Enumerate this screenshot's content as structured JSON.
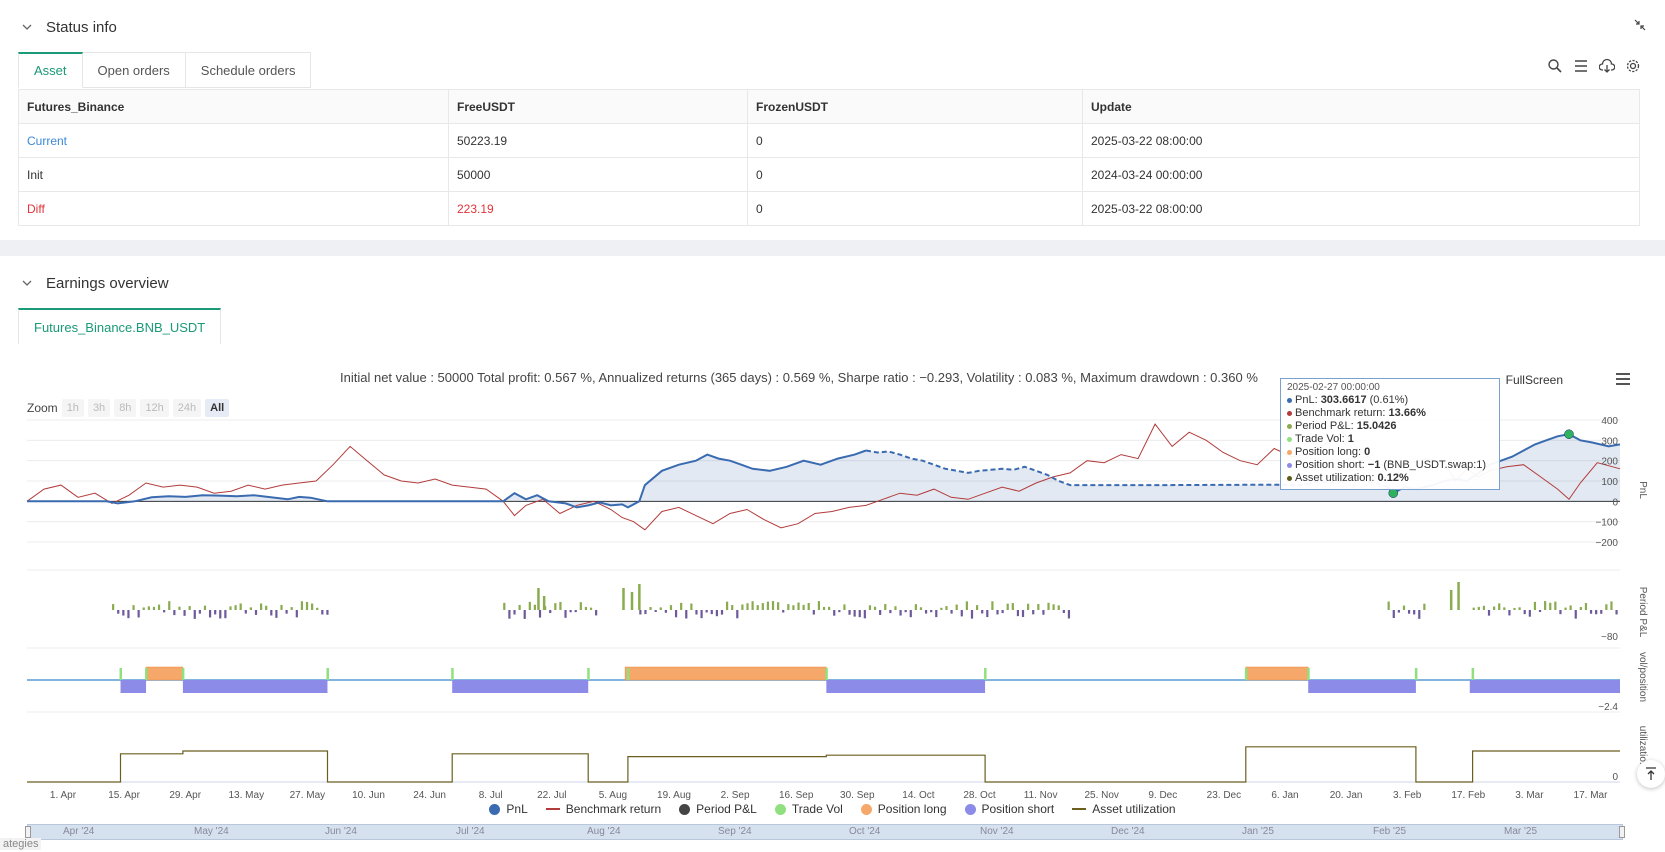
{
  "status_panel": {
    "title": "Status info",
    "tabs": [
      {
        "label": "Asset",
        "active": true
      },
      {
        "label": "Open orders",
        "active": false
      },
      {
        "label": "Schedule orders",
        "active": false
      }
    ],
    "table": {
      "headers": [
        "Futures_Binance",
        "FreeUSDT",
        "FrozenUSDT",
        "Update"
      ],
      "rows": [
        [
          "Current",
          "50223.19",
          "0",
          "2025-03-22 08:00:00"
        ],
        [
          "Init",
          "50000",
          "0",
          "2024-03-24 00:00:00"
        ],
        [
          "Diff",
          "223.19",
          "0",
          "2025-03-22 08:00:00"
        ]
      ]
    }
  },
  "earnings_panel": {
    "title": "Earnings overview",
    "tab": "Futures_Binance.BNB_USDT",
    "summary": "Initial net value : 50000 Total profit: 0.567 %, Annualized returns (365 days) : 0.569 %, Sharpe ratio : −0.293, Volatility : 0.083 %, Maximum drawdown : 0.360 %",
    "fullscreen_label": "FullScreen",
    "zoom": {
      "label": "Zoom",
      "buttons": [
        "1h",
        "3h",
        "8h",
        "12h",
        "24h",
        "All"
      ],
      "selected": "All"
    }
  },
  "tooltip": {
    "date": "2025-02-27 00:00:00",
    "rows": [
      {
        "label": "PnL: ",
        "value": "303.6617",
        "extra": " (0.61%)",
        "color": "#3a6bb0"
      },
      {
        "label": "Benchmark return: ",
        "value": "13.66%",
        "extra": "",
        "color": "#b33b3b"
      },
      {
        "label": "Period P&L: ",
        "value": "15.0426",
        "extra": "",
        "color": "#8aab4f"
      },
      {
        "label": "Trade Vol: ",
        "value": "1",
        "extra": "",
        "color": "#90e080"
      },
      {
        "label": "Position long: ",
        "value": "0",
        "extra": "",
        "color": "#f5a86a"
      },
      {
        "label": "Position short: ",
        "value": "−1",
        "extra": " (BNB_USDT.swap:1)",
        "color": "#8c8ce8"
      },
      {
        "label": "Asset utilization: ",
        "value": "0.12%",
        "extra": "",
        "color": "#5e5a1a"
      }
    ]
  },
  "legend": [
    {
      "label": "PnL",
      "color": "#3a6bb0",
      "kind": "dot"
    },
    {
      "label": "Benchmark return",
      "color": "#b33b3b",
      "kind": "line"
    },
    {
      "label": "Period P&L",
      "color": "#444444",
      "kind": "dot"
    },
    {
      "label": "Trade Vol",
      "color": "#90e080",
      "kind": "dot"
    },
    {
      "label": "Position long",
      "color": "#f5a86a",
      "kind": "dot"
    },
    {
      "label": "Position short",
      "color": "#8c8ce8",
      "kind": "dot"
    },
    {
      "label": "Asset utilization",
      "color": "#6b5e1e",
      "kind": "line"
    }
  ],
  "navigator_labels": [
    "Apr '24",
    "May '24",
    "Jun '24",
    "Jul '24",
    "Aug '24",
    "Sep '24",
    "Oct '24",
    "Nov '24",
    "Dec '24",
    "Jan '25",
    "Feb '25",
    "Mar '25"
  ],
  "footer_tag": "ategies",
  "colors": {
    "accent": "#1a9a77",
    "pnl": "#3a6bb0",
    "benchmark": "#b33b3b",
    "long": "#f5a86a",
    "short": "#8c8ce8"
  },
  "chart_data": {
    "type": "line",
    "x_ticks": [
      "1. Apr",
      "15. Apr",
      "29. Apr",
      "13. May",
      "27. May",
      "10. Jun",
      "24. Jun",
      "8. Jul",
      "22. Jul",
      "5. Aug",
      "19. Aug",
      "2. Sep",
      "16. Sep",
      "30. Sep",
      "14. Oct",
      "28. Oct",
      "11. Nov",
      "25. Nov",
      "9. Dec",
      "23. Dec",
      "6. Jan",
      "20. Jan",
      "3. Feb",
      "17. Feb",
      "3. Mar",
      "17. Mar"
    ],
    "pnl_axis": {
      "label": "PnL",
      "ticks": [
        "400",
        "300",
        "200",
        "100",
        "0",
        "−100",
        "−200"
      ],
      "ylim": [
        -200,
        400
      ]
    },
    "period_axis": {
      "label": "Period P&L",
      "min_label": "−80"
    },
    "position_axis": {
      "label": "vol/position",
      "min_label": "−2.4"
    },
    "util_axis": {
      "label": "utilizatio...",
      "min_label": "0"
    },
    "pnl_series": [
      [
        0,
        0
      ],
      [
        14,
        0
      ],
      [
        16,
        -10
      ],
      [
        19,
        0
      ],
      [
        22,
        20
      ],
      [
        25,
        25
      ],
      [
        28,
        22
      ],
      [
        31,
        30
      ],
      [
        34,
        28
      ],
      [
        37,
        25
      ],
      [
        40,
        30
      ],
      [
        43,
        20
      ],
      [
        46,
        10
      ],
      [
        48,
        22
      ],
      [
        50,
        18
      ],
      [
        53,
        0
      ],
      [
        60,
        0
      ],
      [
        70,
        0
      ],
      [
        80,
        0
      ],
      [
        84,
        0
      ],
      [
        86,
        40
      ],
      [
        88,
        10
      ],
      [
        90,
        30
      ],
      [
        92,
        0
      ],
      [
        95,
        -10
      ],
      [
        97,
        -30
      ],
      [
        99,
        -20
      ],
      [
        101,
        -5
      ],
      [
        103,
        -20
      ],
      [
        105,
        -15
      ],
      [
        106,
        -30
      ],
      [
        108,
        0
      ],
      [
        109,
        80
      ],
      [
        112,
        150
      ],
      [
        115,
        180
      ],
      [
        118,
        200
      ],
      [
        120,
        230
      ],
      [
        122,
        210
      ],
      [
        124,
        200
      ],
      [
        126,
        180
      ],
      [
        128,
        160
      ],
      [
        131,
        150
      ],
      [
        134,
        170
      ],
      [
        137,
        200
      ],
      [
        140,
        180
      ],
      [
        143,
        210
      ],
      [
        146,
        230
      ],
      [
        148,
        250
      ],
      [
        150,
        240
      ],
      [
        152,
        245
      ],
      [
        154,
        230
      ],
      [
        156,
        210
      ],
      [
        158,
        200
      ],
      [
        160,
        180
      ],
      [
        162,
        160
      ],
      [
        164,
        150
      ],
      [
        166,
        140
      ],
      [
        168,
        150
      ],
      [
        170,
        155
      ],
      [
        172,
        160
      ],
      [
        174,
        155
      ],
      [
        176,
        170
      ],
      [
        178,
        150
      ],
      [
        180,
        130
      ],
      [
        182,
        100
      ],
      [
        184,
        80
      ],
      [
        200,
        80
      ],
      [
        220,
        82
      ],
      [
        225,
        80
      ],
      [
        228,
        100
      ],
      [
        230,
        90
      ],
      [
        232,
        100
      ],
      [
        234,
        120
      ],
      [
        236,
        100
      ],
      [
        238,
        90
      ],
      [
        240,
        70
      ],
      [
        241,
        40
      ],
      [
        243,
        70
      ],
      [
        245,
        60
      ],
      [
        248,
        80
      ],
      [
        250,
        100
      ],
      [
        252,
        110
      ],
      [
        254,
        100
      ],
      [
        256,
        140
      ],
      [
        258,
        180
      ],
      [
        260,
        200
      ],
      [
        262,
        220
      ],
      [
        264,
        250
      ],
      [
        266,
        280
      ],
      [
        268,
        300
      ],
      [
        270,
        320
      ],
      [
        272,
        330
      ],
      [
        274,
        300
      ],
      [
        276,
        290
      ],
      [
        279,
        270
      ],
      [
        281,
        280
      ]
    ],
    "benchmark_series": [
      [
        0,
        0
      ],
      [
        3,
        60
      ],
      [
        6,
        80
      ],
      [
        9,
        20
      ],
      [
        12,
        40
      ],
      [
        15,
        -10
      ],
      [
        18,
        30
      ],
      [
        21,
        90
      ],
      [
        24,
        70
      ],
      [
        27,
        80
      ],
      [
        30,
        70
      ],
      [
        33,
        40
      ],
      [
        36,
        50
      ],
      [
        39,
        80
      ],
      [
        42,
        60
      ],
      [
        45,
        80
      ],
      [
        48,
        90
      ],
      [
        51,
        100
      ],
      [
        54,
        180
      ],
      [
        57,
        270
      ],
      [
        60,
        200
      ],
      [
        63,
        130
      ],
      [
        66,
        100
      ],
      [
        69,
        90
      ],
      [
        72,
        110
      ],
      [
        75,
        80
      ],
      [
        78,
        70
      ],
      [
        81,
        60
      ],
      [
        84,
        0
      ],
      [
        86,
        -70
      ],
      [
        88,
        -20
      ],
      [
        91,
        10
      ],
      [
        94,
        -60
      ],
      [
        97,
        -20
      ],
      [
        100,
        0
      ],
      [
        103,
        -40
      ],
      [
        105,
        -80
      ],
      [
        107,
        -100
      ],
      [
        109,
        -140
      ],
      [
        112,
        -50
      ],
      [
        115,
        -30
      ],
      [
        118,
        -70
      ],
      [
        121,
        -110
      ],
      [
        124,
        -60
      ],
      [
        127,
        -40
      ],
      [
        130,
        -90
      ],
      [
        133,
        -130
      ],
      [
        136,
        -110
      ],
      [
        139,
        -60
      ],
      [
        142,
        -50
      ],
      [
        145,
        -30
      ],
      [
        148,
        -20
      ],
      [
        151,
        10
      ],
      [
        154,
        40
      ],
      [
        157,
        30
      ],
      [
        160,
        60
      ],
      [
        163,
        20
      ],
      [
        166,
        10
      ],
      [
        169,
        40
      ],
      [
        172,
        70
      ],
      [
        175,
        50
      ],
      [
        178,
        90
      ],
      [
        181,
        120
      ],
      [
        184,
        140
      ],
      [
        187,
        200
      ],
      [
        190,
        190
      ],
      [
        193,
        230
      ],
      [
        196,
        210
      ],
      [
        199,
        380
      ],
      [
        202,
        270
      ],
      [
        205,
        340
      ],
      [
        208,
        300
      ],
      [
        211,
        240
      ],
      [
        214,
        200
      ],
      [
        217,
        180
      ],
      [
        220,
        260
      ],
      [
        223,
        220
      ],
      [
        226,
        230
      ],
      [
        229,
        280
      ],
      [
        232,
        340
      ],
      [
        235,
        250
      ],
      [
        238,
        190
      ],
      [
        241,
        160
      ],
      [
        244,
        190
      ],
      [
        247,
        210
      ],
      [
        250,
        190
      ],
      [
        252,
        100
      ],
      [
        254,
        160
      ],
      [
        256,
        120
      ],
      [
        258,
        150
      ],
      [
        261,
        170
      ],
      [
        264,
        180
      ],
      [
        267,
        120
      ],
      [
        270,
        60
      ],
      [
        272,
        10
      ],
      [
        274,
        90
      ],
      [
        277,
        190
      ],
      [
        281,
        160
      ]
    ],
    "pnl_dashed_ranges": [
      [
        148,
        184
      ],
      [
        184,
        240
      ]
    ],
    "markers": [
      {
        "x": 241,
        "y": 40
      },
      {
        "x": 272,
        "y": 330
      }
    ]
  }
}
